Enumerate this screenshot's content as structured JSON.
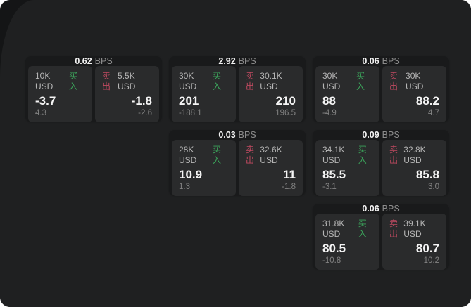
{
  "app": {
    "description": "dark quote tiles dashboard",
    "unit_label": "BPS"
  },
  "colors": {
    "buy_green": "#3ca75c",
    "sell_red": "#c04a60",
    "background": "#1f2021",
    "backdrop": "#141516",
    "card": "#191a1b",
    "panel": "#2a2b2c"
  },
  "cards": [
    {
      "row": 1,
      "col": 1,
      "bps": "0.62",
      "unit": "BPS",
      "buy": {
        "amount": "10K USD",
        "action": "买入",
        "value": "-3.7",
        "change": "4.3"
      },
      "sell": {
        "action": "卖出",
        "amount": "5.5K USD",
        "value": "-1.8",
        "change": "-2.6"
      }
    },
    {
      "row": 1,
      "col": 2,
      "bps": "2.92",
      "unit": "BPS",
      "buy": {
        "amount": "30K USD",
        "action": "买入",
        "value": "201",
        "change": "-188.1"
      },
      "sell": {
        "action": "卖出",
        "amount": "30.1K USD",
        "value": "210",
        "change": "196.5"
      }
    },
    {
      "row": 1,
      "col": 3,
      "bps": "0.06",
      "unit": "BPS",
      "buy": {
        "amount": "30K USD",
        "action": "买入",
        "value": "88",
        "change": "-4.9"
      },
      "sell": {
        "action": "卖出",
        "amount": "30K USD",
        "value": "88.2",
        "change": "4.7"
      }
    },
    {
      "row": 2,
      "col": 2,
      "bps": "0.03",
      "unit": "BPS",
      "buy": {
        "amount": "28K USD",
        "action": "买入",
        "value": "10.9",
        "change": "1.3"
      },
      "sell": {
        "action": "卖出",
        "amount": "32.6K USD",
        "value": "11",
        "change": "-1.8"
      }
    },
    {
      "row": 2,
      "col": 3,
      "bps": "0.09",
      "unit": "BPS",
      "buy": {
        "amount": "34.1K USD",
        "action": "买入",
        "value": "85.5",
        "change": "-3.1"
      },
      "sell": {
        "action": "卖出",
        "amount": "32.8K USD",
        "value": "85.8",
        "change": "3.0"
      }
    },
    {
      "row": 3,
      "col": 3,
      "bps": "0.06",
      "unit": "BPS",
      "buy": {
        "amount": "31.8K USD",
        "action": "买入",
        "value": "80.5",
        "change": "-10.8"
      },
      "sell": {
        "action": "卖出",
        "amount": "39.1K USD",
        "value": "80.7",
        "change": "10.2"
      }
    }
  ]
}
